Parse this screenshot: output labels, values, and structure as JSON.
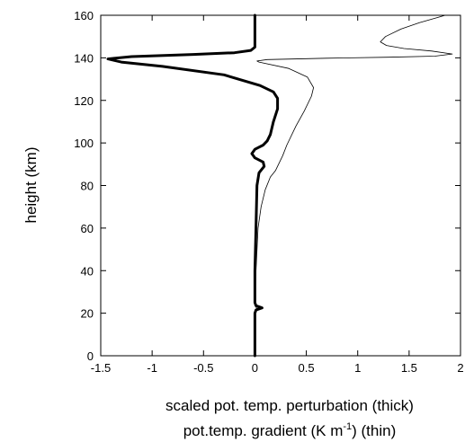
{
  "chart_data": {
    "type": "line",
    "xlabel_line1": "scaled pot. temp. perturbation (thick)",
    "xlabel_line2_pre": "pot.temp. gradient (K m",
    "xlabel_line2_sup": "-1",
    "xlabel_line2_post": ") (thin)",
    "ylabel": "height (km)",
    "xlim": [
      -1.5,
      2
    ],
    "ylim": [
      0,
      160
    ],
    "grid": false,
    "x_ticks": [
      -1.5,
      -1,
      -0.5,
      0,
      0.5,
      1,
      1.5,
      2
    ],
    "x_tick_labels": [
      "-1.5",
      "-1",
      "-0.5",
      "0",
      "0.5",
      "1",
      "1.5",
      "2"
    ],
    "y_ticks": [
      0,
      20,
      40,
      60,
      80,
      100,
      120,
      140,
      160
    ],
    "y_tick_labels": [
      "0",
      "20",
      "40",
      "60",
      "80",
      "100",
      "120",
      "140",
      "160"
    ],
    "series": [
      {
        "style": "thick",
        "color": "#000000",
        "points": [
          [
            0.0,
            0
          ],
          [
            0.0,
            10
          ],
          [
            0.0,
            20
          ],
          [
            0.01,
            21.5
          ],
          [
            0.07,
            22.5
          ],
          [
            0.01,
            23.5
          ],
          [
            0.0,
            25
          ],
          [
            0.0,
            40
          ],
          [
            0.01,
            60
          ],
          [
            0.02,
            80
          ],
          [
            0.04,
            86
          ],
          [
            0.09,
            89
          ],
          [
            0.08,
            91
          ],
          [
            0.0,
            93
          ],
          [
            -0.03,
            95
          ],
          [
            0.0,
            97
          ],
          [
            0.08,
            99
          ],
          [
            0.12,
            101
          ],
          [
            0.15,
            104
          ],
          [
            0.18,
            110
          ],
          [
            0.22,
            116
          ],
          [
            0.22,
            121
          ],
          [
            0.18,
            124
          ],
          [
            0.05,
            127
          ],
          [
            -0.3,
            132
          ],
          [
            -0.9,
            136
          ],
          [
            -1.3,
            138
          ],
          [
            -1.43,
            139.5
          ],
          [
            -1.2,
            140.6
          ],
          [
            -0.6,
            141.6
          ],
          [
            -0.2,
            142.4
          ],
          [
            -0.04,
            143.5
          ],
          [
            0.0,
            145
          ],
          [
            0.0,
            150
          ],
          [
            0.0,
            160
          ]
        ]
      },
      {
        "style": "thin",
        "color": "#000000",
        "points": [
          [
            0.0,
            0
          ],
          [
            0.0,
            10
          ],
          [
            0.0,
            20
          ],
          [
            0.02,
            22
          ],
          [
            0.0,
            24
          ],
          [
            0.01,
            40
          ],
          [
            0.03,
            60
          ],
          [
            0.06,
            70
          ],
          [
            0.1,
            78
          ],
          [
            0.15,
            84
          ],
          [
            0.2,
            87
          ],
          [
            0.23,
            90
          ],
          [
            0.27,
            94
          ],
          [
            0.31,
            99
          ],
          [
            0.4,
            108
          ],
          [
            0.48,
            115
          ],
          [
            0.55,
            122
          ],
          [
            0.57,
            126
          ],
          [
            0.51,
            131
          ],
          [
            0.33,
            135
          ],
          [
            0.04,
            138
          ],
          [
            0.02,
            138.5
          ],
          [
            0.12,
            139.2
          ],
          [
            0.7,
            139.8
          ],
          [
            1.3,
            140.3
          ],
          [
            1.75,
            140.8
          ],
          [
            1.92,
            141.8
          ],
          [
            1.72,
            143.2
          ],
          [
            1.45,
            144.4
          ],
          [
            1.28,
            145.8
          ],
          [
            1.22,
            147.5
          ],
          [
            1.27,
            150
          ],
          [
            1.42,
            153.5
          ],
          [
            1.6,
            156.5
          ],
          [
            1.78,
            159
          ],
          [
            1.85,
            160
          ]
        ]
      }
    ]
  }
}
